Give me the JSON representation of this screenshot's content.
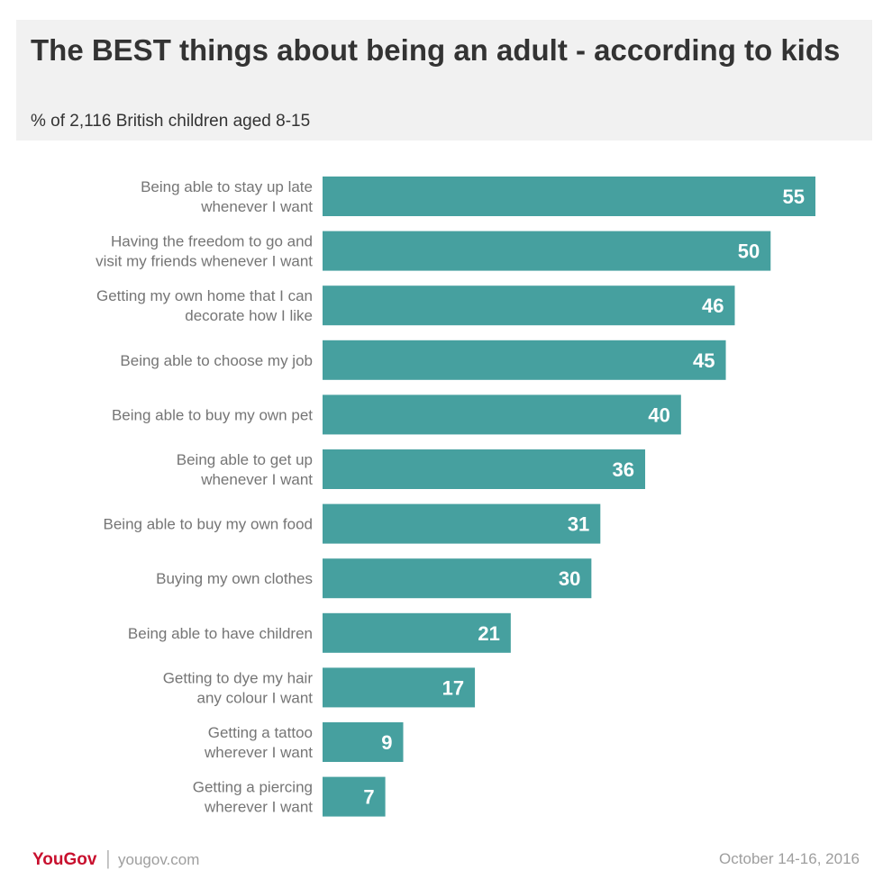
{
  "header": {
    "title": "The BEST things about being an adult - according to kids",
    "subtitle": "% of 2,116 British children aged 8-15"
  },
  "chart_data": {
    "type": "bar",
    "orientation": "horizontal",
    "title": "The BEST things about being an adult - according to kids",
    "subtitle": "% of 2,116 British children aged 8-15",
    "categories": [
      [
        "Being able to stay up late",
        "whenever I want"
      ],
      [
        "Having the freedom to go and",
        "visit my friends whenever I want"
      ],
      [
        "Getting my own home that I can",
        "decorate how I like"
      ],
      [
        "Being able to choose my job"
      ],
      [
        "Being able to buy my own pet"
      ],
      [
        "Being able to get up",
        "whenever I want"
      ],
      [
        "Being able to buy my own food"
      ],
      [
        "Buying my own clothes"
      ],
      [
        "Being able to have children"
      ],
      [
        "Getting to dye my hair",
        "any colour I want"
      ],
      [
        "Getting a tattoo",
        "wherever I want"
      ],
      [
        "Getting a piercing",
        "wherever I want"
      ]
    ],
    "values": [
      55,
      50,
      46,
      45,
      40,
      36,
      31,
      30,
      21,
      17,
      9,
      7
    ],
    "xlim": [
      0,
      55
    ],
    "bar_color": "#46a09f",
    "grid": false,
    "legend": "none",
    "data_labels": "inside-end"
  },
  "footer": {
    "brand": "YouGov",
    "separator": "|",
    "url": "yougov.com",
    "date": "October 14-16, 2016"
  }
}
